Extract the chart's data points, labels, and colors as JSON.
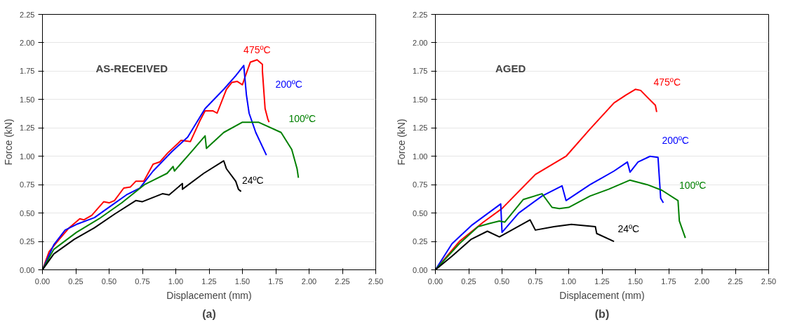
{
  "chart_data": [
    {
      "type": "line",
      "title": "(a)",
      "xlabel": "Displacement (mm)",
      "ylabel": "Force (kN)",
      "annotations": [
        "AS-RECEIVED"
      ],
      "xlim": [
        0,
        2.5
      ],
      "ylim": [
        0,
        2.25
      ],
      "xticks": [
        {
          "value": 0,
          "label": "0.00"
        },
        {
          "value": 0.25,
          "label": "0.25"
        },
        {
          "value": 0.5,
          "label": "0.50"
        },
        {
          "value": 0.75,
          "label": "0.75"
        },
        {
          "value": 1,
          "label": "1.00"
        },
        {
          "value": 1.25,
          "label": "1.25"
        },
        {
          "value": 1.5,
          "label": "1.50"
        },
        {
          "value": 1.75,
          "label": "1.75"
        },
        {
          "value": 2,
          "label": "2.00"
        },
        {
          "value": 2.25,
          "label": "2.25"
        },
        {
          "value": 2.5,
          "label": "2.50"
        }
      ],
      "yticks": [
        {
          "value": 0,
          "label": "0.00"
        },
        {
          "value": 0.25,
          "label": "0.25"
        },
        {
          "value": 0.5,
          "label": "0.50"
        },
        {
          "value": 0.75,
          "label": "0.75"
        },
        {
          "value": 1,
          "label": "1.00"
        },
        {
          "value": 1.25,
          "label": "1.25"
        },
        {
          "value": 1.5,
          "label": "1.50"
        },
        {
          "value": 1.75,
          "label": "1.75"
        },
        {
          "value": 2,
          "label": "2.00"
        },
        {
          "value": 2.25,
          "label": "2.25"
        }
      ],
      "grid": "y",
      "marker": "none",
      "line_style": "solid",
      "series": [
        {
          "name": "475ºC",
          "color": "#ff0000",
          "x": [
            0,
            0.05,
            0.12,
            0.2,
            0.28,
            0.31,
            0.37,
            0.46,
            0.5,
            0.54,
            0.61,
            0.66,
            0.7,
            0.76,
            0.83,
            0.88,
            0.94,
            1.04,
            1.11,
            1.18,
            1.22,
            1.28,
            1.31,
            1.38,
            1.42,
            1.46,
            1.5,
            1.52,
            1.56,
            1.61,
            1.65,
            1.65,
            1.67,
            1.69,
            1.7
          ],
          "values": [
            0,
            0.16,
            0.26,
            0.37,
            0.45,
            0.44,
            0.48,
            0.6,
            0.59,
            0.61,
            0.72,
            0.73,
            0.78,
            0.78,
            0.93,
            0.95,
            1.03,
            1.14,
            1.13,
            1.31,
            1.4,
            1.4,
            1.38,
            1.59,
            1.65,
            1.66,
            1.63,
            1.7,
            1.83,
            1.85,
            1.81,
            1.75,
            1.42,
            1.33,
            1.3
          ]
        },
        {
          "name": "200ºC",
          "color": "#0000ff",
          "x": [
            0,
            0.085,
            0.17,
            0.255,
            0.39,
            0.51,
            0.63,
            0.73,
            0.83,
            0.97,
            1.09,
            1.22,
            1.36,
            1.45,
            1.51,
            1.53,
            1.55,
            1.6,
            1.68
          ],
          "values": [
            0,
            0.22,
            0.35,
            0.4,
            0.46,
            0.56,
            0.66,
            0.72,
            0.87,
            1.04,
            1.17,
            1.42,
            1.59,
            1.71,
            1.8,
            1.54,
            1.38,
            1.21,
            1.01
          ]
        },
        {
          "name": "100ºC",
          "color": "#008000",
          "x": [
            0,
            0.085,
            0.255,
            0.425,
            0.595,
            0.765,
            0.935,
            0.98,
            0.99,
            1.11,
            1.22,
            1.23,
            1.36,
            1.5,
            1.62,
            1.79,
            1.87,
            1.91,
            1.92
          ],
          "values": [
            0,
            0.18,
            0.33,
            0.45,
            0.59,
            0.75,
            0.85,
            0.91,
            0.87,
            1.03,
            1.18,
            1.07,
            1.21,
            1.3,
            1.3,
            1.21,
            1.06,
            0.89,
            0.81
          ]
        },
        {
          "name": "24ºC",
          "color": "#000000",
          "x": [
            0,
            0.085,
            0.24,
            0.39,
            0.54,
            0.7,
            0.75,
            0.9,
            0.95,
            1.05,
            1.05,
            1.21,
            1.36,
            1.38,
            1.45,
            1.47,
            1.49
          ],
          "values": [
            0,
            0.14,
            0.27,
            0.37,
            0.49,
            0.61,
            0.6,
            0.67,
            0.66,
            0.76,
            0.71,
            0.85,
            0.96,
            0.89,
            0.78,
            0.71,
            0.69
          ]
        }
      ]
    },
    {
      "type": "line",
      "title": "(b)",
      "xlabel": "Displacement (mm)",
      "ylabel": "Force (kN)",
      "annotations": [
        "AGED"
      ],
      "xlim": [
        0,
        2.5
      ],
      "ylim": [
        0,
        2.25
      ],
      "xticks": [
        {
          "value": 0,
          "label": "0.00"
        },
        {
          "value": 0.25,
          "label": "0.25"
        },
        {
          "value": 0.5,
          "label": "0.50"
        },
        {
          "value": 0.75,
          "label": "0.75"
        },
        {
          "value": 1,
          "label": "1.00"
        },
        {
          "value": 1.25,
          "label": "1.25"
        },
        {
          "value": 1.5,
          "label": "1.50"
        },
        {
          "value": 1.75,
          "label": "1.75"
        },
        {
          "value": 2,
          "label": "2.00"
        },
        {
          "value": 2.25,
          "label": "2.25"
        },
        {
          "value": 2.5,
          "label": "2.50"
        }
      ],
      "yticks": [
        {
          "value": 0,
          "label": "0.00"
        },
        {
          "value": 0.25,
          "label": "0.25"
        },
        {
          "value": 0.5,
          "label": "0.50"
        },
        {
          "value": 0.75,
          "label": "0.75"
        },
        {
          "value": 1,
          "label": "1.00"
        },
        {
          "value": 1.25,
          "label": "1.25"
        },
        {
          "value": 1.5,
          "label": "1.50"
        },
        {
          "value": 1.75,
          "label": "1.75"
        },
        {
          "value": 2,
          "label": "2.00"
        },
        {
          "value": 2.25,
          "label": "2.25"
        }
      ],
      "grid": "y",
      "marker": "none",
      "line_style": "solid",
      "series": [
        {
          "name": "475ºC",
          "color": "#ff0000",
          "x": [
            0,
            0.18,
            0.36,
            0.5,
            0.75,
            0.98,
            1.16,
            1.34,
            1.43,
            1.5,
            1.54,
            1.59,
            1.65,
            1.66
          ],
          "values": [
            0,
            0.25,
            0.42,
            0.54,
            0.84,
            1.0,
            1.24,
            1.47,
            1.54,
            1.59,
            1.58,
            1.52,
            1.45,
            1.39
          ]
        },
        {
          "name": "200ºC",
          "color": "#0000ff",
          "x": [
            0,
            0.125,
            0.27,
            0.49,
            0.5,
            0.625,
            0.8,
            0.95,
            0.98,
            1.16,
            1.34,
            1.44,
            1.46,
            1.52,
            1.61,
            1.67,
            1.69,
            1.71
          ],
          "values": [
            0,
            0.23,
            0.39,
            0.58,
            0.33,
            0.5,
            0.65,
            0.74,
            0.61,
            0.75,
            0.87,
            0.95,
            0.86,
            0.95,
            1.0,
            0.99,
            0.63,
            0.59
          ]
        },
        {
          "name": "100ºC",
          "color": "#008000",
          "x": [
            0,
            0.18,
            0.32,
            0.41,
            0.48,
            0.52,
            0.66,
            0.8,
            0.875,
            0.93,
            1.0,
            1.16,
            1.3,
            1.46,
            1.59,
            1.7,
            1.82,
            1.83,
            1.875
          ],
          "values": [
            0,
            0.23,
            0.38,
            0.41,
            0.43,
            0.42,
            0.62,
            0.67,
            0.55,
            0.54,
            0.55,
            0.65,
            0.71,
            0.79,
            0.75,
            0.7,
            0.61,
            0.43,
            0.28
          ]
        },
        {
          "name": "24ºC",
          "color": "#000000",
          "x": [
            0,
            0.125,
            0.27,
            0.39,
            0.48,
            0.71,
            0.75,
            0.89,
            1.02,
            1.2,
            1.21,
            1.34
          ],
          "values": [
            0,
            0.12,
            0.27,
            0.34,
            0.29,
            0.44,
            0.35,
            0.38,
            0.4,
            0.38,
            0.32,
            0.25
          ]
        }
      ]
    }
  ]
}
